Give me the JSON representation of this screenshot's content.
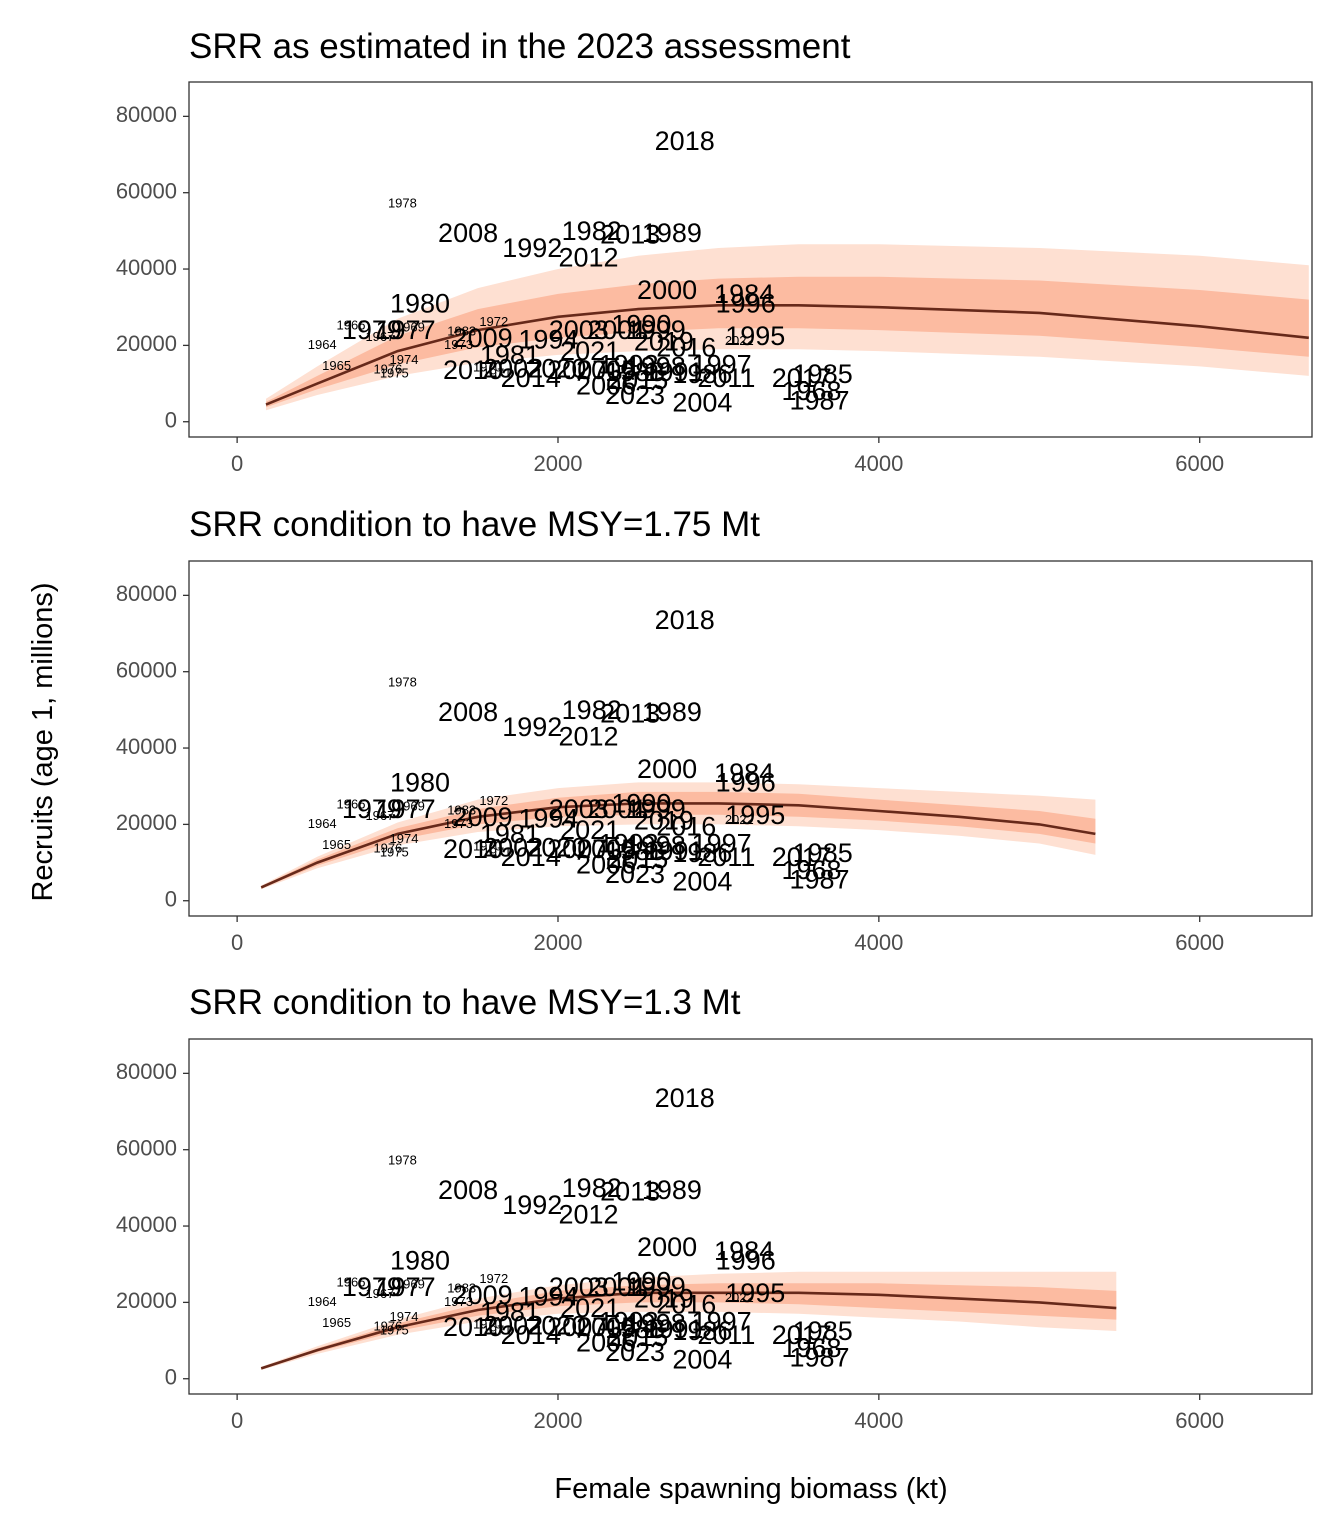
{
  "figure": {
    "ylabel": "Recruits (age 1, millions)",
    "xlabel": "Female spawning biomass (kt)"
  },
  "style": {
    "band_outer": "#FEE0D2",
    "band_inner": "#FCBBA1",
    "curve": "#67291A",
    "frame": "#333333",
    "tick_text": "#4D4D4D"
  },
  "points": [
    {
      "year": "1978",
      "ssb": 1030,
      "rec": 57000,
      "size": "small"
    },
    {
      "year": "2018",
      "ssb": 2790,
      "rec": 73000,
      "size": "large"
    },
    {
      "year": "2008",
      "ssb": 1440,
      "rec": 49000,
      "size": "large"
    },
    {
      "year": "1982",
      "ssb": 2210,
      "rec": 49500,
      "size": "large"
    },
    {
      "year": "2013",
      "ssb": 2450,
      "rec": 48500,
      "size": "large"
    },
    {
      "year": "1989",
      "ssb": 2710,
      "rec": 49000,
      "size": "large"
    },
    {
      "year": "1992",
      "ssb": 1840,
      "rec": 45000,
      "size": "large"
    },
    {
      "year": "2012",
      "ssb": 2190,
      "rec": 42500,
      "size": "large"
    },
    {
      "year": "1980",
      "ssb": 1140,
      "rec": 30500,
      "size": "large"
    },
    {
      "year": "2000",
      "ssb": 2680,
      "rec": 34000,
      "size": "large"
    },
    {
      "year": "1984",
      "ssb": 3160,
      "rec": 33000,
      "size": "large"
    },
    {
      "year": "1996",
      "ssb": 3170,
      "rec": 30500,
      "size": "large"
    },
    {
      "year": "1966",
      "ssb": 710,
      "rec": 25000,
      "size": "small"
    },
    {
      "year": "1972",
      "ssb": 1600,
      "rec": 26000,
      "size": "small"
    },
    {
      "year": "1979",
      "ssb": 840,
      "rec": 23500,
      "size": "large"
    },
    {
      "year": "1977",
      "ssb": 1050,
      "rec": 23500,
      "size": "large"
    },
    {
      "year": "1969",
      "ssb": 1080,
      "rec": 24500,
      "size": "small"
    },
    {
      "year": "1967",
      "ssb": 890,
      "rec": 22000,
      "size": "small"
    },
    {
      "year": "1983",
      "ssb": 1400,
      "rec": 23500,
      "size": "small"
    },
    {
      "year": "1973",
      "ssb": 1380,
      "rec": 20000,
      "size": "small"
    },
    {
      "year": "2009",
      "ssb": 1530,
      "rec": 21500,
      "size": "large"
    },
    {
      "year": "1994",
      "ssb": 1940,
      "rec": 21000,
      "size": "large"
    },
    {
      "year": "2003",
      "ssb": 2130,
      "rec": 23500,
      "size": "large"
    },
    {
      "year": "2001",
      "ssb": 2370,
      "rec": 23500,
      "size": "large"
    },
    {
      "year": "1999",
      "ssb": 2610,
      "rec": 23500,
      "size": "large"
    },
    {
      "year": "1990",
      "ssb": 2520,
      "rec": 25000,
      "size": "large"
    },
    {
      "year": "2019",
      "ssb": 2660,
      "rec": 20500,
      "size": "large"
    },
    {
      "year": "2016",
      "ssb": 2800,
      "rec": 19000,
      "size": "large"
    },
    {
      "year": "2022",
      "ssb": 3130,
      "rec": 21000,
      "size": "small"
    },
    {
      "year": "1995",
      "ssb": 3230,
      "rec": 22000,
      "size": "large"
    },
    {
      "year": "1964",
      "ssb": 530,
      "rec": 20000,
      "size": "small"
    },
    {
      "year": "2021",
      "ssb": 2200,
      "rec": 18000,
      "size": "large"
    },
    {
      "year": "1981",
      "ssb": 1700,
      "rec": 17000,
      "size": "large"
    },
    {
      "year": "1974",
      "ssb": 1040,
      "rec": 16000,
      "size": "small"
    },
    {
      "year": "1965",
      "ssb": 620,
      "rec": 14500,
      "size": "small"
    },
    {
      "year": "1976",
      "ssb": 940,
      "rec": 13500,
      "size": "small"
    },
    {
      "year": "1975",
      "ssb": 980,
      "rec": 12500,
      "size": "small"
    },
    {
      "year": "1970",
      "ssb": 1560,
      "rec": 14000,
      "size": "small"
    },
    {
      "year": "1971",
      "ssb": 1620,
      "rec": 12500,
      "size": "small"
    },
    {
      "year": "2010",
      "ssb": 1470,
      "rec": 13000,
      "size": "large"
    },
    {
      "year": "2002",
      "ssb": 1720,
      "rec": 13500,
      "size": "large"
    },
    {
      "year": "2020",
      "ssb": 1990,
      "rec": 13500,
      "size": "large"
    },
    {
      "year": "2007",
      "ssb": 2120,
      "rec": 13000,
      "size": "large"
    },
    {
      "year": "2014",
      "ssb": 1830,
      "rec": 11000,
      "size": "large"
    },
    {
      "year": "2005",
      "ssb": 2300,
      "rec": 13000,
      "size": "large"
    },
    {
      "year": "1993",
      "ssb": 2440,
      "rec": 14500,
      "size": "large"
    },
    {
      "year": "1998",
      "ssb": 2610,
      "rec": 14000,
      "size": "large"
    },
    {
      "year": "1997",
      "ssb": 3020,
      "rec": 14500,
      "size": "large"
    },
    {
      "year": "1988",
      "ssb": 2480,
      "rec": 12500,
      "size": "large"
    },
    {
      "year": "2006",
      "ssb": 2300,
      "rec": 9000,
      "size": "large"
    },
    {
      "year": "2015",
      "ssb": 2500,
      "rec": 10500,
      "size": "large"
    },
    {
      "year": "1991",
      "ssb": 2720,
      "rec": 12500,
      "size": "large"
    },
    {
      "year": "1986",
      "ssb": 2900,
      "rec": 12000,
      "size": "large"
    },
    {
      "year": "1985",
      "ssb": 3650,
      "rec": 12000,
      "size": "large"
    },
    {
      "year": "2011",
      "ssb": 3050,
      "rec": 11000,
      "size": "large"
    },
    {
      "year": "2017",
      "ssb": 3520,
      "rec": 11000,
      "size": "large"
    },
    {
      "year": "2023",
      "ssb": 2480,
      "rec": 6500,
      "size": "large"
    },
    {
      "year": "1968",
      "ssb": 3580,
      "rec": 7500,
      "size": "large"
    },
    {
      "year": "2004",
      "ssb": 2900,
      "rec": 4500,
      "size": "large"
    },
    {
      "year": "1987",
      "ssb": 3630,
      "rec": 5000,
      "size": "large"
    }
  ],
  "chart_data": [
    {
      "type": "line",
      "title": "SRR as estimated in the 2023 assessment",
      "xlim": [
        -300,
        6700
      ],
      "ylim": [
        -4000,
        89000
      ],
      "xticks": [
        0,
        2000,
        4000,
        6000
      ],
      "yticks": [
        0,
        20000,
        40000,
        60000,
        80000
      ],
      "grid": false,
      "series": [
        {
          "x": [
            180,
            500,
            1000,
            1500,
            2000,
            2500,
            3000,
            3500,
            4000,
            5000,
            6000,
            6680
          ],
          "y": [
            4500,
            10000,
            18500,
            24000,
            27500,
            29500,
            30500,
            30500,
            30000,
            28500,
            25000,
            22000
          ]
        }
      ],
      "bands": [
        {
          "x": [
            180,
            500,
            1000,
            1500,
            2000,
            2500,
            3000,
            3500,
            4000,
            5000,
            6000,
            6680
          ],
          "low": [
            3000,
            7000,
            12000,
            15500,
            17500,
            18500,
            19000,
            19000,
            18500,
            17000,
            14500,
            12000
          ],
          "high": [
            6000,
            14500,
            27000,
            35000,
            40000,
            43500,
            45500,
            46500,
            46500,
            45500,
            43500,
            41000
          ]
        },
        {
          "x": [
            180,
            500,
            1000,
            1500,
            2000,
            2500,
            3000,
            3500,
            4000,
            5000,
            6000,
            6680
          ],
          "low": [
            3800,
            8500,
            15000,
            19500,
            22000,
            23500,
            24500,
            24500,
            24000,
            22500,
            19500,
            17000
          ],
          "high": [
            5200,
            12000,
            22500,
            29500,
            33500,
            36000,
            37500,
            38000,
            38000,
            37000,
            34500,
            32000
          ]
        }
      ]
    },
    {
      "type": "line",
      "title": "SRR condition to have MSY=1.75 Mt",
      "xlim": [
        -300,
        6700
      ],
      "ylim": [
        -4000,
        89000
      ],
      "xticks": [
        0,
        2000,
        4000,
        6000
      ],
      "yticks": [
        0,
        20000,
        40000,
        60000,
        80000
      ],
      "grid": false,
      "series": [
        {
          "x": [
            150,
            500,
            1000,
            1500,
            2000,
            2500,
            3000,
            3500,
            4000,
            4500,
            5000,
            5350
          ],
          "y": [
            3500,
            10000,
            17500,
            22000,
            24500,
            25500,
            25500,
            25000,
            23500,
            22000,
            20000,
            17500
          ]
        }
      ],
      "bands": [
        {
          "x": [
            150,
            500,
            1000,
            1500,
            2000,
            2500,
            3000,
            3500,
            4000,
            4500,
            5000,
            5350
          ],
          "low": [
            3000,
            8500,
            14500,
            18000,
            19500,
            20000,
            20000,
            19500,
            18500,
            17000,
            15000,
            12000
          ],
          "high": [
            4000,
            11500,
            20500,
            26500,
            29500,
            31000,
            31000,
            30500,
            29500,
            28500,
            27500,
            26500
          ]
        },
        {
          "x": [
            150,
            500,
            1000,
            1500,
            2000,
            2500,
            3000,
            3500,
            4000,
            4500,
            5000,
            5350
          ],
          "low": [
            3200,
            9200,
            16000,
            20000,
            22000,
            22500,
            22500,
            22000,
            21000,
            19500,
            17500,
            15000
          ],
          "high": [
            3800,
            10800,
            19000,
            24000,
            27000,
            28500,
            28500,
            28000,
            26500,
            25000,
            23500,
            21500
          ]
        }
      ]
    },
    {
      "type": "line",
      "title": "SRR condition to have MSY=1.3 Mt",
      "xlim": [
        -300,
        6700
      ],
      "ylim": [
        -4000,
        89000
      ],
      "xticks": [
        0,
        2000,
        4000,
        6000
      ],
      "yticks": [
        0,
        20000,
        40000,
        60000,
        80000
      ],
      "grid": false,
      "series": [
        {
          "x": [
            150,
            500,
            1000,
            1500,
            2000,
            2500,
            3000,
            3500,
            4000,
            4500,
            5000,
            5480
          ],
          "y": [
            2700,
            7500,
            13500,
            18000,
            21000,
            22500,
            22500,
            22500,
            22000,
            21000,
            20000,
            18500
          ]
        }
      ],
      "bands": [
        {
          "x": [
            150,
            500,
            1000,
            1500,
            2000,
            2500,
            3000,
            3500,
            4000,
            4500,
            5000,
            5480
          ],
          "low": [
            2300,
            6500,
            11500,
            15000,
            17000,
            17500,
            17500,
            17000,
            16000,
            15000,
            13500,
            12500
          ],
          "high": [
            3100,
            8500,
            15500,
            21000,
            24500,
            26500,
            27500,
            28000,
            28000,
            28000,
            28000,
            28000
          ]
        },
        {
          "x": [
            150,
            500,
            1000,
            1500,
            2000,
            2500,
            3000,
            3500,
            4000,
            4500,
            5000,
            5480
          ],
          "low": [
            2500,
            7000,
            12500,
            16500,
            19000,
            20000,
            20000,
            19500,
            18500,
            17500,
            16500,
            15500
          ],
          "high": [
            2900,
            8000,
            14500,
            19500,
            23000,
            24500,
            25000,
            25000,
            25000,
            24500,
            24000,
            23000
          ]
        }
      ]
    }
  ]
}
